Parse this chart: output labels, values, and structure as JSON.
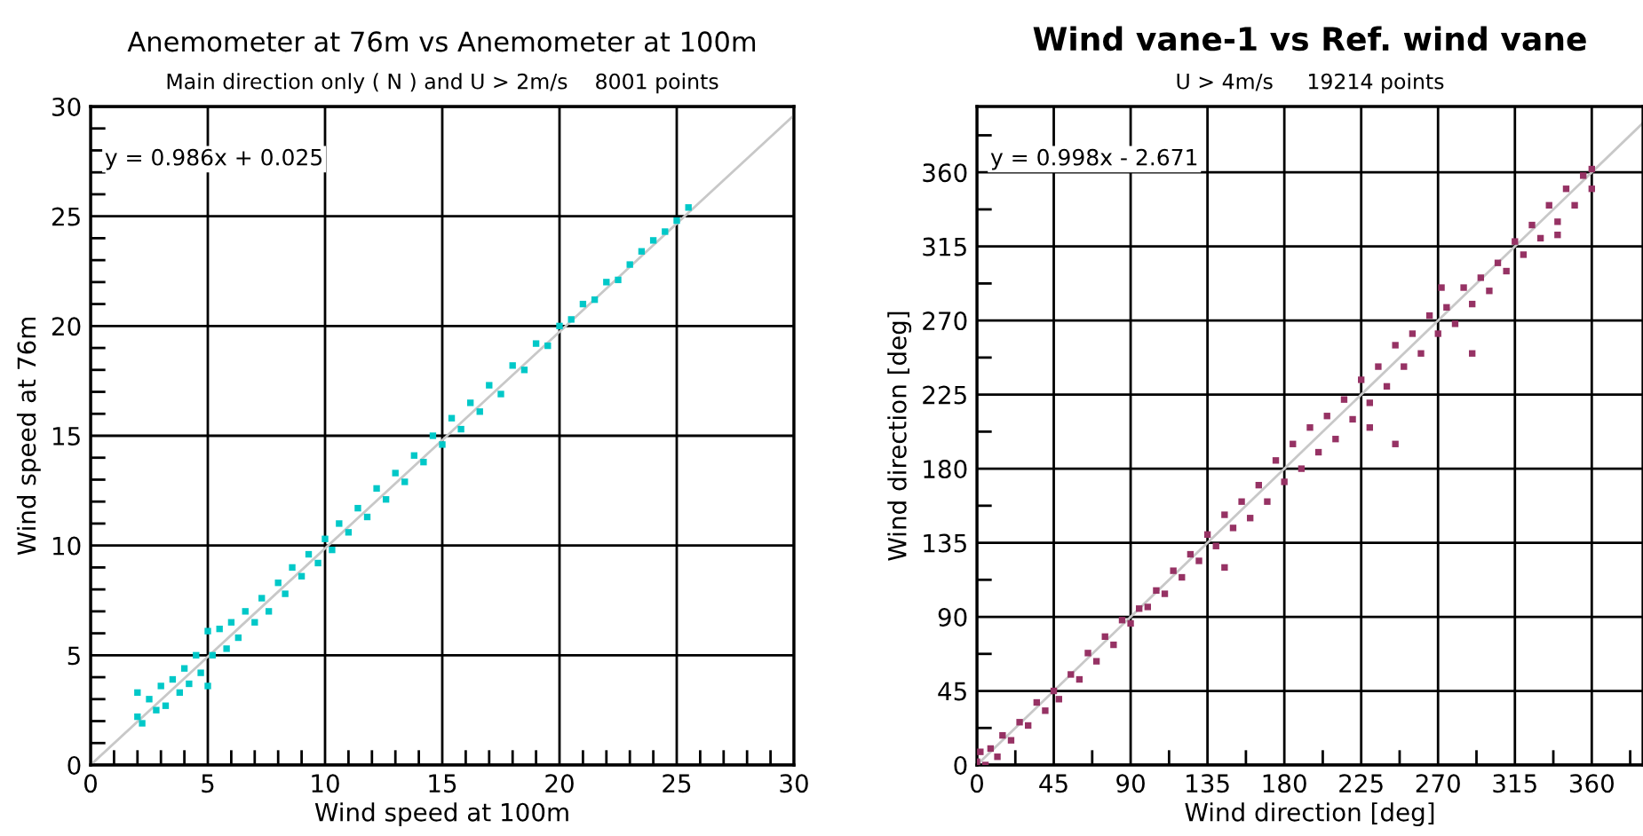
{
  "chart_data": [
    {
      "type": "scatter",
      "title": "Anemometer at 76m vs Anemometer at 100m",
      "subtitle": "Main direction only ( N ) and U > 2m/s    8001 points",
      "xlabel": "Wind speed at 100m",
      "ylabel": "Wind speed at 76m",
      "annotations": [
        "y = 0.986x + 0.025"
      ],
      "xlim": [
        0,
        30
      ],
      "ylim": [
        0,
        30
      ],
      "xticks": [
        0,
        5,
        10,
        15,
        20,
        25,
        30
      ],
      "yticks": [
        0,
        5,
        10,
        15,
        20,
        25,
        30
      ],
      "grid": true,
      "series": [
        {
          "marker": "square",
          "color": "#00c8c8",
          "x": [
            2,
            2,
            2.2,
            2.5,
            2.8,
            3,
            3.2,
            3.5,
            3.8,
            4,
            4.2,
            4.5,
            4.7,
            5,
            5,
            5.2,
            5.5,
            5.8,
            6,
            6.3,
            6.6,
            7,
            7.3,
            7.6,
            8,
            8.3,
            8.6,
            9,
            9.3,
            9.7,
            10,
            10.3,
            10.6,
            11,
            11.4,
            11.8,
            12.2,
            12.6,
            13,
            13.4,
            13.8,
            14.2,
            14.6,
            15,
            15.4,
            15.8,
            16.2,
            16.6,
            17,
            17.5,
            18,
            18.5,
            19,
            19.5,
            20,
            20.5,
            21,
            21.5,
            22,
            22.5,
            23,
            23.5,
            24,
            24.5,
            25,
            25.5
          ],
          "values": [
            2.2,
            3.3,
            1.9,
            3.0,
            2.5,
            3.6,
            2.7,
            3.9,
            3.3,
            4.4,
            3.7,
            5.0,
            4.2,
            6.1,
            3.6,
            5.0,
            6.2,
            5.3,
            6.5,
            5.8,
            7.0,
            6.5,
            7.6,
            7.0,
            8.3,
            7.8,
            9.0,
            8.6,
            9.6,
            9.2,
            10.3,
            9.8,
            11.0,
            10.6,
            11.7,
            11.3,
            12.6,
            12.1,
            13.3,
            12.9,
            14.1,
            13.8,
            15.0,
            14.6,
            15.8,
            15.3,
            16.5,
            16.1,
            17.3,
            16.9,
            18.2,
            18.0,
            19.2,
            19.1,
            20.0,
            20.3,
            21.0,
            21.2,
            22.0,
            22.1,
            22.8,
            23.4,
            23.9,
            24.3,
            24.8,
            25.4
          ]
        },
        {
          "type": "line",
          "color": "#c8c8c8",
          "x": [
            0,
            30
          ],
          "values": [
            0,
            29.6
          ]
        }
      ]
    },
    {
      "type": "scatter",
      "title": "Wind vane-1 vs Ref. wind vane",
      "subtitle": "U > 4m/s     19214 points",
      "xlabel": "Wind direction [deg]",
      "ylabel": "Wind direction [deg]",
      "annotations": [
        "y = 0.998x - 2.671"
      ],
      "xlim": [
        0,
        390
      ],
      "ylim": [
        0,
        400
      ],
      "xticks": [
        0,
        45,
        90,
        135,
        180,
        225,
        270,
        315,
        360
      ],
      "yticks": [
        0,
        45,
        90,
        135,
        180,
        225,
        270,
        315,
        360
      ],
      "grid": true,
      "series": [
        {
          "marker": "square",
          "color": "#963264",
          "x": [
            0,
            2,
            5,
            8,
            12,
            15,
            20,
            25,
            30,
            35,
            40,
            45,
            48,
            55,
            60,
            65,
            70,
            75,
            80,
            85,
            90,
            95,
            100,
            105,
            110,
            115,
            120,
            125,
            130,
            135,
            140,
            145,
            145,
            150,
            155,
            160,
            165,
            170,
            175,
            180,
            185,
            190,
            195,
            200,
            205,
            210,
            215,
            220,
            225,
            230,
            230,
            235,
            240,
            245,
            245,
            250,
            255,
            260,
            265,
            270,
            272,
            275,
            280,
            285,
            290,
            290,
            295,
            300,
            305,
            310,
            315,
            320,
            325,
            330,
            335,
            340,
            340,
            345,
            350,
            355,
            360,
            360
          ],
          "values": [
            2,
            8,
            0,
            10,
            5,
            18,
            15,
            26,
            24,
            38,
            33,
            45,
            40,
            55,
            52,
            68,
            63,
            78,
            73,
            88,
            86,
            95,
            96,
            106,
            104,
            118,
            114,
            128,
            124,
            140,
            133,
            152,
            120,
            144,
            160,
            150,
            170,
            160,
            185,
            172,
            195,
            180,
            205,
            190,
            212,
            198,
            222,
            210,
            234,
            220,
            205,
            242,
            230,
            255,
            195,
            242,
            262,
            250,
            273,
            262,
            290,
            278,
            268,
            290,
            280,
            250,
            296,
            288,
            305,
            300,
            318,
            310,
            328,
            320,
            340,
            330,
            322,
            350,
            340,
            358,
            350,
            362
          ]
        },
        {
          "type": "line",
          "color": "#c8c8c8",
          "x": [
            0,
            390
          ],
          "values": [
            0,
            390
          ]
        }
      ]
    }
  ]
}
